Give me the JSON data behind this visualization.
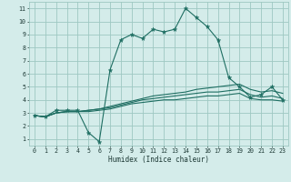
{
  "title": "",
  "xlabel": "Humidex (Indice chaleur)",
  "bg_color": "#d4ecea",
  "grid_color": "#9ec8c2",
  "line_color": "#1e6e62",
  "xlim": [
    -0.5,
    23.5
  ],
  "ylim": [
    0.5,
    11.5
  ],
  "xticks": [
    0,
    1,
    2,
    3,
    4,
    5,
    6,
    7,
    8,
    9,
    10,
    11,
    12,
    13,
    14,
    15,
    16,
    17,
    18,
    19,
    20,
    21,
    22,
    23
  ],
  "yticks": [
    1,
    2,
    3,
    4,
    5,
    6,
    7,
    8,
    9,
    10,
    11
  ],
  "main_x": [
    0,
    1,
    2,
    3,
    4,
    5,
    6,
    7,
    8,
    9,
    10,
    11,
    12,
    13,
    14,
    15,
    16,
    17,
    18,
    19,
    20,
    21,
    22,
    23
  ],
  "main_y": [
    2.8,
    2.7,
    3.2,
    3.2,
    3.2,
    1.5,
    0.8,
    6.3,
    8.6,
    9.0,
    8.7,
    9.4,
    9.2,
    9.4,
    11.0,
    10.3,
    9.6,
    8.6,
    5.7,
    5.0,
    4.2,
    4.4,
    5.0,
    4.0
  ],
  "line2_x": [
    0,
    1,
    2,
    3,
    4,
    5,
    6,
    7,
    8,
    9,
    10,
    11,
    12,
    13,
    14,
    15,
    16,
    17,
    18,
    19,
    20,
    21,
    22,
    23
  ],
  "line2_y": [
    2.8,
    2.7,
    3.0,
    3.1,
    3.1,
    3.1,
    3.2,
    3.3,
    3.5,
    3.7,
    3.8,
    3.9,
    4.0,
    4.0,
    4.1,
    4.2,
    4.3,
    4.3,
    4.4,
    4.5,
    4.1,
    4.0,
    4.0,
    3.9
  ],
  "line3_x": [
    0,
    1,
    2,
    3,
    4,
    5,
    6,
    7,
    8,
    9,
    10,
    11,
    12,
    13,
    14,
    15,
    16,
    17,
    18,
    19,
    20,
    21,
    22,
    23
  ],
  "line3_y": [
    2.8,
    2.7,
    3.0,
    3.1,
    3.1,
    3.2,
    3.3,
    3.4,
    3.6,
    3.8,
    4.0,
    4.1,
    4.2,
    4.3,
    4.4,
    4.5,
    4.6,
    4.6,
    4.7,
    4.8,
    4.4,
    4.2,
    4.3,
    4.1
  ],
  "line4_x": [
    0,
    1,
    2,
    3,
    4,
    5,
    6,
    7,
    8,
    9,
    10,
    11,
    12,
    13,
    14,
    15,
    16,
    17,
    18,
    19,
    20,
    21,
    22,
    23
  ],
  "line4_y": [
    2.8,
    2.7,
    3.0,
    3.1,
    3.1,
    3.2,
    3.3,
    3.5,
    3.7,
    3.9,
    4.1,
    4.3,
    4.4,
    4.5,
    4.6,
    4.8,
    4.9,
    5.0,
    5.1,
    5.2,
    4.8,
    4.6,
    4.7,
    4.5
  ]
}
